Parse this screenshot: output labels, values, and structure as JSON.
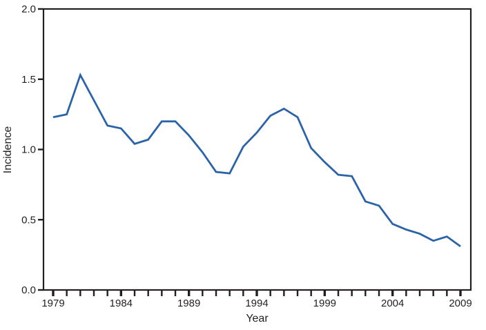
{
  "figure": {
    "background": "#ffffff"
  },
  "chart_data": {
    "type": "line",
    "title": "",
    "xlabel": "Year",
    "ylabel": "Incidence",
    "x": [
      1979,
      1980,
      1981,
      1982,
      1983,
      1984,
      1985,
      1986,
      1987,
      1988,
      1989,
      1990,
      1991,
      1992,
      1993,
      1994,
      1995,
      1996,
      1997,
      1998,
      1999,
      2000,
      2001,
      2002,
      2003,
      2004,
      2005,
      2006,
      2007,
      2008,
      2009
    ],
    "series": [
      {
        "name": "Incidence",
        "color": "#2B63A9",
        "values": [
          1.23,
          1.25,
          1.53,
          1.35,
          1.17,
          1.15,
          1.04,
          1.07,
          1.2,
          1.2,
          1.1,
          0.98,
          0.84,
          0.83,
          1.02,
          1.12,
          1.24,
          1.29,
          1.23,
          1.01,
          0.91,
          0.82,
          0.81,
          0.63,
          0.6,
          0.47,
          0.43,
          0.4,
          0.35,
          0.38,
          0.31
        ]
      }
    ],
    "xlim": [
      1979,
      2009
    ],
    "ylim": [
      0.0,
      2.0
    ],
    "yticks": [
      0.0,
      0.5,
      1.0,
      1.5,
      2.0
    ],
    "ytick_labels": [
      "0.0",
      "0.5",
      "1.0",
      "1.5",
      "2.0"
    ],
    "xticks_every_year": true,
    "xtick_labeled_years": [
      1979,
      1984,
      1989,
      1994,
      1999,
      2004,
      2009
    ],
    "grid": false,
    "legend": "none",
    "frame": "full-box",
    "axis_color": "#231F20",
    "text_color": "#231F20",
    "line_width": 2.8
  }
}
